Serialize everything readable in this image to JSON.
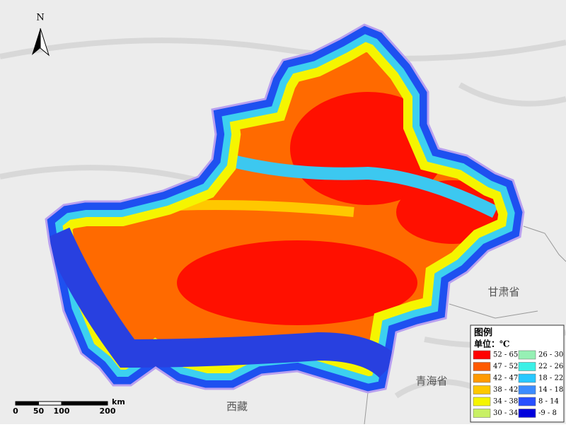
{
  "north_arrow": {
    "label": "N"
  },
  "places": [
    {
      "name": "甘肃省"
    },
    {
      "name": "青海省"
    },
    {
      "name": "西藏"
    }
  ],
  "legend": {
    "title": "图例",
    "unit": "单位：℃",
    "items": [
      {
        "label": "52 - 65",
        "color": "#ff0000"
      },
      {
        "label": "47 - 52",
        "color": "#ff5a00"
      },
      {
        "label": "42 - 47",
        "color": "#ff9a00"
      },
      {
        "label": "38 - 42",
        "color": "#ffc800"
      },
      {
        "label": "34 - 38",
        "color": "#f5f500"
      },
      {
        "label": "30 - 34",
        "color": "#c8f064"
      },
      {
        "label": "26 - 30",
        "color": "#96f0b4"
      },
      {
        "label": "22 - 26",
        "color": "#3cf0e6"
      },
      {
        "label": "18 - 22",
        "color": "#28c8ff"
      },
      {
        "label": "14 - 18",
        "color": "#3c8cff"
      },
      {
        "label": "8 - 14",
        "color": "#2850ff"
      },
      {
        "label": "-9 - 8",
        "color": "#0000dc"
      }
    ]
  },
  "scale_bar": {
    "ticks": [
      0,
      50,
      100,
      200
    ],
    "unit": "km"
  }
}
